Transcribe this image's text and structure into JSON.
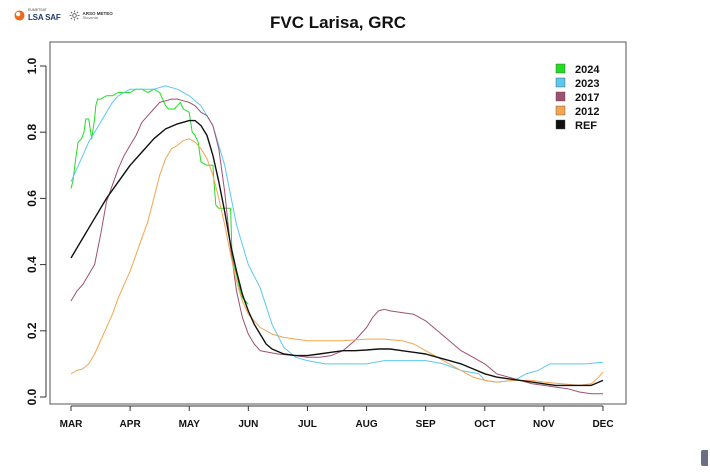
{
  "branding": {
    "lsasaf_small": "EUMETSAT",
    "lsasaf_main": "LSA SAF",
    "arso_main": "ARSO METEO",
    "arso_sub": "Slovenia"
  },
  "chart_data": {
    "type": "line",
    "title": "FVC Larisa, GRC",
    "xlabel": "",
    "ylabel": "",
    "x_domain": [
      1,
      10
    ],
    "ylim": [
      0,
      1
    ],
    "yticks": [
      0.0,
      0.2,
      0.4,
      0.6,
      0.8,
      1.0
    ],
    "ytick_labels": [
      "0.0",
      "0.2",
      "0.4",
      "0.6",
      "0.8",
      "1.0"
    ],
    "xticks": [
      1,
      2,
      3,
      4,
      5,
      6,
      7,
      8,
      9,
      10
    ],
    "xtick_labels": [
      "MAR",
      "APR",
      "MAY",
      "JUN",
      "JUL",
      "AUG",
      "SEP",
      "OCT",
      "NOV",
      "DEC"
    ],
    "grid": false,
    "legend_position": "top-right",
    "series": [
      {
        "name": "2024",
        "color": "#22dd22",
        "points": [
          [
            1.0,
            0.63
          ],
          [
            1.03,
            0.65
          ],
          [
            1.08,
            0.72
          ],
          [
            1.12,
            0.77
          ],
          [
            1.18,
            0.78
          ],
          [
            1.22,
            0.8
          ],
          [
            1.25,
            0.84
          ],
          [
            1.3,
            0.84
          ],
          [
            1.35,
            0.78
          ],
          [
            1.4,
            0.84
          ],
          [
            1.42,
            0.88
          ],
          [
            1.45,
            0.9
          ],
          [
            1.5,
            0.9
          ],
          [
            1.6,
            0.91
          ],
          [
            1.7,
            0.91
          ],
          [
            1.8,
            0.92
          ],
          [
            1.9,
            0.92
          ],
          [
            2.0,
            0.92
          ],
          [
            2.1,
            0.93
          ],
          [
            2.2,
            0.93
          ],
          [
            2.3,
            0.92
          ],
          [
            2.4,
            0.93
          ],
          [
            2.5,
            0.92
          ],
          [
            2.55,
            0.9
          ],
          [
            2.6,
            0.88
          ],
          [
            2.65,
            0.87
          ],
          [
            2.75,
            0.87
          ],
          [
            2.8,
            0.88
          ],
          [
            2.85,
            0.89
          ],
          [
            2.9,
            0.87
          ],
          [
            3.0,
            0.86
          ],
          [
            3.05,
            0.8
          ],
          [
            3.1,
            0.79
          ],
          [
            3.15,
            0.77
          ],
          [
            3.2,
            0.71
          ],
          [
            3.3,
            0.7
          ],
          [
            3.4,
            0.7
          ],
          [
            3.42,
            0.65
          ],
          [
            3.45,
            0.58
          ],
          [
            3.5,
            0.57
          ],
          [
            3.6,
            0.57
          ],
          [
            3.7,
            0.57
          ],
          [
            3.72,
            0.45
          ],
          [
            3.75,
            0.4
          ],
          [
            3.8,
            0.37
          ],
          [
            3.85,
            0.33
          ],
          [
            3.9,
            0.3
          ],
          [
            3.95,
            0.29
          ],
          [
            4.0,
            0.28
          ]
        ]
      },
      {
        "name": "2023",
        "color": "#5bc8f0",
        "points": [
          [
            1.0,
            0.65
          ],
          [
            1.1,
            0.69
          ],
          [
            1.2,
            0.73
          ],
          [
            1.3,
            0.77
          ],
          [
            1.4,
            0.8
          ],
          [
            1.5,
            0.83
          ],
          [
            1.6,
            0.86
          ],
          [
            1.7,
            0.89
          ],
          [
            1.8,
            0.91
          ],
          [
            1.9,
            0.92
          ],
          [
            2.0,
            0.93
          ],
          [
            2.2,
            0.93
          ],
          [
            2.4,
            0.93
          ],
          [
            2.6,
            0.94
          ],
          [
            2.8,
            0.93
          ],
          [
            3.0,
            0.91
          ],
          [
            3.2,
            0.88
          ],
          [
            3.4,
            0.82
          ],
          [
            3.6,
            0.7
          ],
          [
            3.8,
            0.52
          ],
          [
            4.0,
            0.4
          ],
          [
            4.2,
            0.33
          ],
          [
            4.4,
            0.22
          ],
          [
            4.6,
            0.15
          ],
          [
            4.8,
            0.12
          ],
          [
            5.0,
            0.11
          ],
          [
            5.3,
            0.1
          ],
          [
            5.6,
            0.1
          ],
          [
            6.0,
            0.1
          ],
          [
            6.3,
            0.11
          ],
          [
            6.6,
            0.11
          ],
          [
            7.0,
            0.11
          ],
          [
            7.3,
            0.1
          ],
          [
            7.6,
            0.08
          ],
          [
            7.9,
            0.07
          ],
          [
            8.0,
            0.05
          ],
          [
            8.2,
            0.045
          ],
          [
            8.5,
            0.05
          ],
          [
            8.7,
            0.07
          ],
          [
            8.9,
            0.08
          ],
          [
            9.1,
            0.1
          ],
          [
            9.4,
            0.1
          ],
          [
            9.7,
            0.1
          ],
          [
            10.0,
            0.105
          ]
        ]
      },
      {
        "name": "2017",
        "color": "#a05070",
        "points": [
          [
            1.0,
            0.29
          ],
          [
            1.1,
            0.32
          ],
          [
            1.2,
            0.34
          ],
          [
            1.3,
            0.37
          ],
          [
            1.4,
            0.4
          ],
          [
            1.5,
            0.49
          ],
          [
            1.6,
            0.59
          ],
          [
            1.7,
            0.64
          ],
          [
            1.8,
            0.69
          ],
          [
            1.9,
            0.73
          ],
          [
            2.0,
            0.76
          ],
          [
            2.1,
            0.79
          ],
          [
            2.2,
            0.83
          ],
          [
            2.3,
            0.85
          ],
          [
            2.4,
            0.87
          ],
          [
            2.5,
            0.89
          ],
          [
            2.6,
            0.895
          ],
          [
            2.7,
            0.9
          ],
          [
            2.8,
            0.9
          ],
          [
            2.9,
            0.895
          ],
          [
            3.0,
            0.89
          ],
          [
            3.1,
            0.88
          ],
          [
            3.2,
            0.86
          ],
          [
            3.3,
            0.85
          ],
          [
            3.4,
            0.82
          ],
          [
            3.5,
            0.75
          ],
          [
            3.6,
            0.62
          ],
          [
            3.7,
            0.45
          ],
          [
            3.8,
            0.32
          ],
          [
            3.9,
            0.24
          ],
          [
            4.0,
            0.19
          ],
          [
            4.1,
            0.16
          ],
          [
            4.2,
            0.14
          ],
          [
            4.5,
            0.13
          ],
          [
            4.8,
            0.125
          ],
          [
            5.0,
            0.12
          ],
          [
            5.2,
            0.12
          ],
          [
            5.4,
            0.125
          ],
          [
            5.6,
            0.14
          ],
          [
            5.8,
            0.17
          ],
          [
            6.0,
            0.21
          ],
          [
            6.1,
            0.24
          ],
          [
            6.2,
            0.26
          ],
          [
            6.3,
            0.265
          ],
          [
            6.4,
            0.26
          ],
          [
            6.6,
            0.255
          ],
          [
            6.8,
            0.25
          ],
          [
            7.0,
            0.23
          ],
          [
            7.2,
            0.2
          ],
          [
            7.4,
            0.17
          ],
          [
            7.6,
            0.14
          ],
          [
            7.8,
            0.12
          ],
          [
            8.0,
            0.1
          ],
          [
            8.2,
            0.07
          ],
          [
            8.4,
            0.06
          ],
          [
            8.6,
            0.05
          ],
          [
            8.8,
            0.04
          ],
          [
            9.0,
            0.035
          ],
          [
            9.2,
            0.03
          ],
          [
            9.4,
            0.025
          ],
          [
            9.6,
            0.015
          ],
          [
            9.8,
            0.01
          ],
          [
            10.0,
            0.01
          ]
        ]
      },
      {
        "name": "2012",
        "color": "#f5a550",
        "points": [
          [
            1.0,
            0.07
          ],
          [
            1.1,
            0.08
          ],
          [
            1.2,
            0.085
          ],
          [
            1.3,
            0.1
          ],
          [
            1.4,
            0.13
          ],
          [
            1.5,
            0.17
          ],
          [
            1.6,
            0.21
          ],
          [
            1.7,
            0.25
          ],
          [
            1.8,
            0.3
          ],
          [
            1.9,
            0.34
          ],
          [
            2.0,
            0.38
          ],
          [
            2.1,
            0.43
          ],
          [
            2.2,
            0.48
          ],
          [
            2.3,
            0.53
          ],
          [
            2.4,
            0.6
          ],
          [
            2.5,
            0.67
          ],
          [
            2.6,
            0.72
          ],
          [
            2.7,
            0.75
          ],
          [
            2.8,
            0.76
          ],
          [
            2.9,
            0.775
          ],
          [
            3.0,
            0.78
          ],
          [
            3.1,
            0.77
          ],
          [
            3.2,
            0.75
          ],
          [
            3.3,
            0.72
          ],
          [
            3.4,
            0.67
          ],
          [
            3.5,
            0.6
          ],
          [
            3.6,
            0.52
          ],
          [
            3.7,
            0.43
          ],
          [
            3.8,
            0.35
          ],
          [
            3.9,
            0.29
          ],
          [
            4.0,
            0.25
          ],
          [
            4.2,
            0.21
          ],
          [
            4.4,
            0.19
          ],
          [
            4.6,
            0.18
          ],
          [
            4.8,
            0.175
          ],
          [
            5.0,
            0.17
          ],
          [
            5.3,
            0.17
          ],
          [
            5.6,
            0.17
          ],
          [
            6.0,
            0.175
          ],
          [
            6.3,
            0.175
          ],
          [
            6.6,
            0.17
          ],
          [
            6.8,
            0.16
          ],
          [
            7.0,
            0.14
          ],
          [
            7.2,
            0.12
          ],
          [
            7.4,
            0.1
          ],
          [
            7.6,
            0.08
          ],
          [
            7.8,
            0.06
          ],
          [
            8.0,
            0.05
          ],
          [
            8.2,
            0.045
          ],
          [
            8.5,
            0.05
          ],
          [
            8.8,
            0.05
          ],
          [
            9.0,
            0.045
          ],
          [
            9.3,
            0.04
          ],
          [
            9.6,
            0.035
          ],
          [
            9.8,
            0.04
          ],
          [
            9.9,
            0.055
          ],
          [
            10.0,
            0.075
          ]
        ]
      },
      {
        "name": "REF",
        "color": "#111111",
        "points": [
          [
            1.0,
            0.42
          ],
          [
            1.2,
            0.48
          ],
          [
            1.4,
            0.54
          ],
          [
            1.6,
            0.6
          ],
          [
            1.8,
            0.65
          ],
          [
            2.0,
            0.7
          ],
          [
            2.2,
            0.74
          ],
          [
            2.4,
            0.78
          ],
          [
            2.6,
            0.81
          ],
          [
            2.8,
            0.825
          ],
          [
            3.0,
            0.835
          ],
          [
            3.1,
            0.835
          ],
          [
            3.2,
            0.82
          ],
          [
            3.3,
            0.79
          ],
          [
            3.4,
            0.73
          ],
          [
            3.5,
            0.65
          ],
          [
            3.6,
            0.56
          ],
          [
            3.7,
            0.46
          ],
          [
            3.8,
            0.38
          ],
          [
            3.9,
            0.31
          ],
          [
            4.0,
            0.26
          ],
          [
            4.1,
            0.22
          ],
          [
            4.2,
            0.19
          ],
          [
            4.3,
            0.16
          ],
          [
            4.4,
            0.145
          ],
          [
            4.6,
            0.13
          ],
          [
            4.8,
            0.125
          ],
          [
            5.0,
            0.125
          ],
          [
            5.2,
            0.13
          ],
          [
            5.4,
            0.135
          ],
          [
            5.6,
            0.14
          ],
          [
            5.8,
            0.14
          ],
          [
            6.0,
            0.142
          ],
          [
            6.2,
            0.145
          ],
          [
            6.4,
            0.145
          ],
          [
            6.6,
            0.14
          ],
          [
            6.8,
            0.135
          ],
          [
            7.0,
            0.13
          ],
          [
            7.2,
            0.12
          ],
          [
            7.4,
            0.11
          ],
          [
            7.6,
            0.1
          ],
          [
            7.8,
            0.085
          ],
          [
            8.0,
            0.07
          ],
          [
            8.2,
            0.06
          ],
          [
            8.4,
            0.055
          ],
          [
            8.6,
            0.05
          ],
          [
            8.8,
            0.045
          ],
          [
            9.0,
            0.04
          ],
          [
            9.2,
            0.035
          ],
          [
            9.4,
            0.035
          ],
          [
            9.6,
            0.035
          ],
          [
            9.8,
            0.035
          ],
          [
            10.0,
            0.05
          ]
        ]
      }
    ]
  }
}
